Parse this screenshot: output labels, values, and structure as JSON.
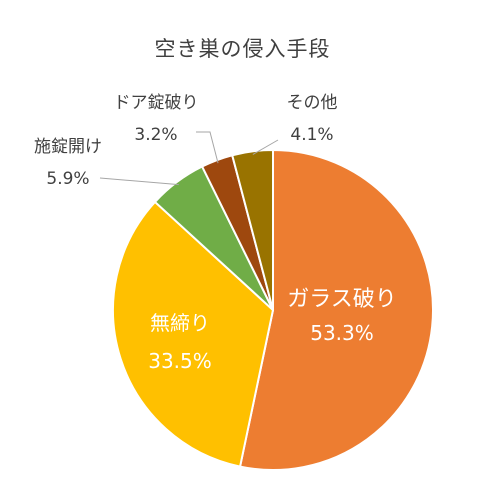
{
  "chart_data": {
    "type": "pie",
    "title": "空き巣の侵入手段",
    "slices": [
      {
        "label": "ガラス破り",
        "value_text": "53.3%",
        "value": 53.3,
        "color": "#ED7D31"
      },
      {
        "label": "無締り",
        "value_text": "33.5%",
        "value": 33.5,
        "color": "#FFC000"
      },
      {
        "label": "施錠開け",
        "value_text": "5.9%",
        "value": 5.9,
        "color": "#70AD47"
      },
      {
        "label": "ドア錠破り",
        "value_text": "3.2%",
        "value": 3.2,
        "color": "#9E480E"
      },
      {
        "label": "その他",
        "value_text": "4.1%",
        "value": 4.1,
        "color": "#997300"
      }
    ],
    "legend": "none"
  }
}
